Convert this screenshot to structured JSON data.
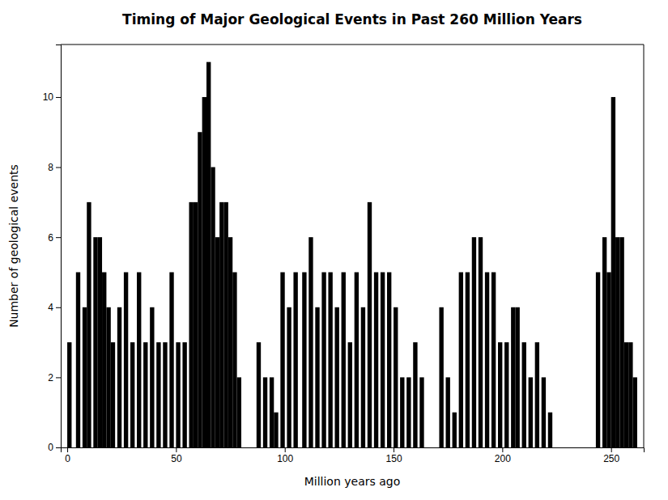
{
  "chart_data": {
    "type": "bar",
    "title": "Timing of Major Geological Events in Past 260 Million Years",
    "x_label": "Million years ago",
    "y_label": "Number of geological events",
    "x": [
      1,
      5,
      8,
      10,
      13,
      15,
      17,
      19,
      21,
      24,
      27,
      30,
      33,
      36,
      39,
      42,
      45,
      48,
      51,
      54,
      57,
      59,
      61,
      63,
      65,
      67,
      69,
      71,
      73,
      75,
      77,
      79,
      88,
      91,
      94,
      96,
      99,
      102,
      105,
      109,
      112,
      115,
      118,
      121,
      124,
      127,
      130,
      133,
      136,
      139,
      142,
      145,
      148,
      151,
      154,
      157,
      160,
      163,
      172,
      175,
      178,
      181,
      184,
      187,
      190,
      193,
      196,
      199,
      202,
      205,
      207,
      210,
      213,
      216,
      219,
      222,
      244,
      247,
      249,
      251,
      253,
      255,
      257,
      259,
      261
    ],
    "values": [
      3,
      5,
      4,
      7,
      6,
      6,
      5,
      4,
      3,
      4,
      5,
      3,
      5,
      3,
      4,
      3,
      3,
      5,
      3,
      3,
      7,
      7,
      9,
      10,
      11,
      8,
      6,
      7,
      7,
      6,
      5,
      2,
      3,
      2,
      2,
      1,
      5,
      4,
      5,
      5,
      6,
      4,
      5,
      5,
      4,
      5,
      3,
      5,
      4,
      7,
      5,
      5,
      5,
      4,
      2,
      2,
      3,
      2,
      4,
      2,
      1,
      5,
      5,
      6,
      6,
      5,
      5,
      3,
      3,
      4,
      4,
      3,
      2,
      3,
      2,
      1,
      5,
      6,
      5,
      10,
      6,
      6,
      3,
      3,
      2
    ],
    "color": "#000000",
    "xlim": [
      -3,
      265
    ],
    "xticks": [
      0,
      50,
      100,
      150,
      200,
      250
    ],
    "ylim": [
      0,
      11.5
    ],
    "yticks": [
      0,
      2,
      4,
      6,
      8,
      10
    ],
    "grid": false
  }
}
